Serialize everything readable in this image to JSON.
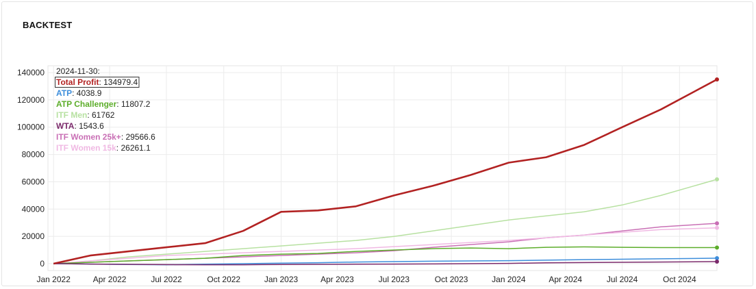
{
  "panel": {
    "title": "BACKTEST"
  },
  "chart_data": {
    "type": "line",
    "x_ticks": [
      "Jan 2022",
      "Apr 2022",
      "Jul 2022",
      "Oct 2022",
      "Jan 2023",
      "Apr 2023",
      "Jul 2023",
      "Oct 2023",
      "Jan 2024",
      "Apr 2024",
      "Jul 2024",
      "Oct 2024"
    ],
    "x": [
      "2022-01-01",
      "2022-03-01",
      "2022-05-01",
      "2022-07-01",
      "2022-09-01",
      "2022-11-01",
      "2023-01-01",
      "2023-03-01",
      "2023-05-01",
      "2023-07-01",
      "2023-09-01",
      "2023-11-01",
      "2024-01-01",
      "2024-03-01",
      "2024-05-01",
      "2024-07-01",
      "2024-09-01",
      "2024-11-30"
    ],
    "xlim": [
      "2021-12-23",
      "2024-11-30"
    ],
    "ylim": [
      -5000,
      145000
    ],
    "y_ticks": [
      0,
      20000,
      40000,
      60000,
      80000,
      100000,
      120000,
      140000
    ],
    "grid": true,
    "tooltip": {
      "date": "2024-11-30:"
    },
    "series": [
      {
        "name": "Total Profit",
        "color": "#b22222",
        "width": 2.6,
        "values": [
          0,
          6000,
          9000,
          12000,
          15000,
          24000,
          38000,
          39000,
          42000,
          50000,
          57000,
          65000,
          74000,
          78000,
          87000,
          100000,
          113000,
          134979.4
        ]
      },
      {
        "name": "ATP",
        "color": "#3c8ddb",
        "width": 1.5,
        "values": [
          0,
          -300,
          -600,
          -800,
          -400,
          0,
          400,
          700,
          1200,
          1500,
          1800,
          2000,
          2200,
          2600,
          3000,
          3300,
          3600,
          4038.9
        ]
      },
      {
        "name": "ATP Challenger",
        "color": "#5cad2a",
        "width": 1.5,
        "values": [
          0,
          1000,
          2000,
          3000,
          4000,
          6000,
          7000,
          7500,
          9000,
          10000,
          11000,
          11500,
          11000,
          12000,
          12300,
          12000,
          11800,
          11807.2
        ]
      },
      {
        "name": "ITF Men",
        "color": "#b7e1a1",
        "width": 1.5,
        "values": [
          0,
          2000,
          5000,
          7000,
          9000,
          11000,
          13000,
          15000,
          17000,
          20000,
          24000,
          28000,
          32000,
          35000,
          38000,
          43000,
          50000,
          61762
        ]
      },
      {
        "name": "WTA",
        "color": "#7b2a6b",
        "width": 1.5,
        "values": [
          0,
          -300,
          -500,
          -700,
          -800,
          -800,
          -600,
          -500,
          -400,
          -300,
          -200,
          0,
          200,
          600,
          800,
          1000,
          1200,
          1543.6
        ]
      },
      {
        "name": "ITF Women 25k+",
        "color": "#c96fb5",
        "width": 1.5,
        "values": [
          0,
          1000,
          2000,
          3000,
          4000,
          5000,
          6000,
          7000,
          8000,
          9500,
          12000,
          14000,
          16000,
          19000,
          21000,
          24000,
          27000,
          29566.6
        ]
      },
      {
        "name": "ITF Women 15k",
        "color": "#f0b9e3",
        "width": 1.5,
        "values": [
          0,
          2000,
          4000,
          6000,
          7000,
          8000,
          9000,
          10000,
          11000,
          12500,
          14000,
          15500,
          17000,
          19000,
          21000,
          23000,
          25000,
          26261.1
        ]
      }
    ]
  }
}
